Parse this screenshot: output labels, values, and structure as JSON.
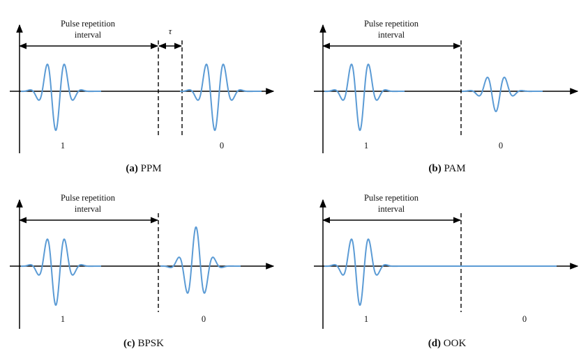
{
  "panels": [
    {
      "id": "ppm",
      "caption_tag": "(a)",
      "caption_text": " PPM",
      "interval_label_line1": "Pulse repetition",
      "interval_label_line2": "interval",
      "tau_label": "τ",
      "bit_one": "1",
      "bit_zero": "0"
    },
    {
      "id": "pam",
      "caption_tag": "(b)",
      "caption_text": " PAM",
      "interval_label_line1": "Pulse repetition",
      "interval_label_line2": "interval",
      "bit_one": "1",
      "bit_zero": "0"
    },
    {
      "id": "bpsk",
      "caption_tag": "(c)",
      "caption_text": " BPSK",
      "interval_label_line1": "Pulse repetition",
      "interval_label_line2": "interval",
      "bit_one": "1",
      "bit_zero": "0"
    },
    {
      "id": "ook",
      "caption_tag": "(d)",
      "caption_text": " OOK",
      "interval_label_line1": "Pulse repetition",
      "interval_label_line2": "interval",
      "bit_one": "1",
      "bit_zero": "0"
    }
  ],
  "colors": {
    "pulse": "#5b9bd5",
    "axis": "#000000"
  }
}
